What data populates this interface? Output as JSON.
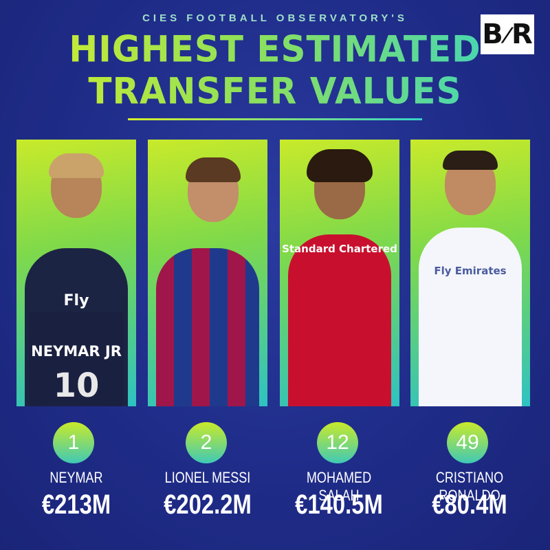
{
  "header": {
    "subtitle": "CIES FOOTBALL OBSERVATORY'S",
    "title_line1": "HIGHEST ESTIMATED",
    "title_line2": "TRANSFER VALUES",
    "logo_left": "B",
    "logo_right": "R"
  },
  "players": [
    {
      "rank": "1",
      "name": "NEYMAR",
      "value": "€213M",
      "shirt_text": "NEYMAR JR",
      "shirt_number": "10",
      "sponsor": "Fly",
      "colors": {
        "jersey": "#1c2444",
        "hair": "#c9a36a"
      }
    },
    {
      "rank": "2",
      "name": "LIONEL MESSI",
      "value": "€202.2M",
      "shirt_text": "",
      "shirt_number": "",
      "sponsor": "",
      "colors": {
        "jersey": "#a0164a",
        "hair": "#5a3a22"
      }
    },
    {
      "rank": "12",
      "name": "MOHAMED SALAH",
      "value": "€140.5M",
      "shirt_text": "",
      "shirt_number": "",
      "sponsor": "Standard Chartered",
      "colors": {
        "jersey": "#c8102e",
        "hair": "#2a1a10"
      }
    },
    {
      "rank": "49",
      "name": "CRISTIANO RONALDO",
      "value": "€80.4M",
      "shirt_text": "",
      "shirt_number": "",
      "sponsor": "Fly Emirates",
      "colors": {
        "jersey": "#f4f6fb",
        "hair": "#2a1e16"
      }
    }
  ]
}
